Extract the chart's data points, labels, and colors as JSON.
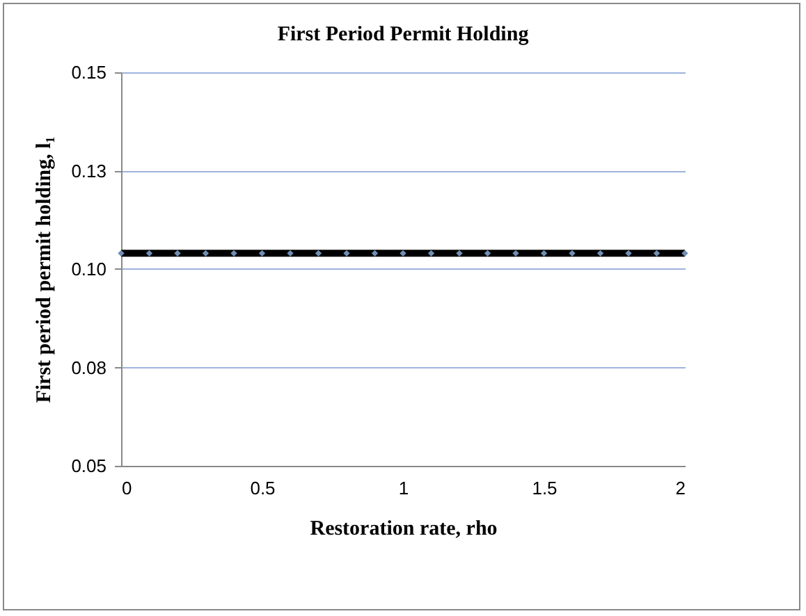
{
  "chart_data": {
    "type": "line",
    "title": "First Period Permit Holding",
    "xlabel": "Restoration rate,  rho",
    "ylabel": "First period permit holding, l₁",
    "x": [
      0,
      0.1,
      0.2,
      0.3,
      0.4,
      0.5,
      0.6,
      0.7,
      0.8,
      0.9,
      1,
      1.1,
      1.2,
      1.3,
      1.4,
      1.5,
      1.6,
      1.7,
      1.8,
      1.9,
      2
    ],
    "series": [
      {
        "color": "#000000",
        "values": [
          0.104,
          0.104,
          0.104,
          0.104,
          0.104,
          0.104,
          0.104,
          0.104,
          0.104,
          0.104,
          0.104,
          0.104,
          0.104,
          0.104,
          0.104,
          0.104,
          0.104,
          0.104,
          0.104,
          0.104,
          0.104
        ]
      }
    ],
    "xlim": [
      0,
      2
    ],
    "xticks": [
      0,
      0.5,
      1,
      1.5,
      2
    ],
    "ylim": [
      0.05,
      0.15
    ],
    "yticks": [
      0.05,
      {
        "value": 0.075,
        "label": "0.08"
      },
      {
        "value": 0.1,
        "label": "0.10"
      },
      {
        "value": 0.125,
        "label": "0.13"
      },
      0.15
    ],
    "grid": "y",
    "marker": "diamond",
    "line_style": "solid"
  }
}
